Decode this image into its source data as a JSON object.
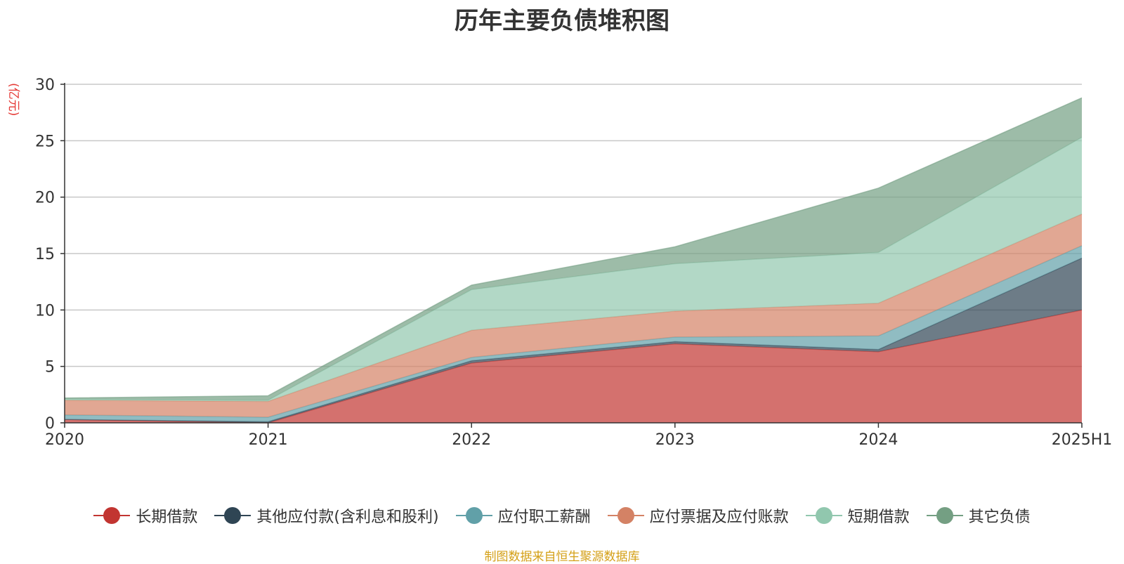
{
  "chart_data": {
    "type": "area",
    "stacked": true,
    "title": "历年主要负债堆积图",
    "unit_label": "(亿元)",
    "categories": [
      "2020",
      "2021",
      "2022",
      "2023",
      "2024",
      "2025H1"
    ],
    "ylim": [
      0,
      30
    ],
    "yticks": [
      0,
      5,
      10,
      15,
      20,
      25,
      30
    ],
    "grid": true,
    "legend_position": "bottom",
    "series": [
      {
        "name": "长期借款",
        "color": "#c23531",
        "values": [
          0.3,
          0.0,
          5.3,
          7.0,
          6.3,
          10.0
        ]
      },
      {
        "name": "其他应付款(含利息和股利)",
        "color": "#2f4554",
        "values": [
          0.0,
          0.1,
          0.2,
          0.2,
          0.2,
          4.6
        ]
      },
      {
        "name": "应付职工薪酬",
        "color": "#61a0a8",
        "values": [
          0.4,
          0.4,
          0.3,
          0.4,
          1.2,
          1.1
        ]
      },
      {
        "name": "应付票据及应付账款",
        "color": "#d48265",
        "values": [
          1.3,
          1.4,
          2.4,
          2.3,
          2.9,
          2.8
        ]
      },
      {
        "name": "短期借款",
        "color": "#91c7ae",
        "values": [
          0.1,
          0.1,
          3.6,
          4.2,
          4.5,
          6.8
        ]
      },
      {
        "name": "其它负债",
        "color": "#749f83",
        "values": [
          0.1,
          0.4,
          0.4,
          1.5,
          5.7,
          3.5
        ]
      }
    ]
  },
  "footer": "制图数据来自恒生聚源数据库"
}
